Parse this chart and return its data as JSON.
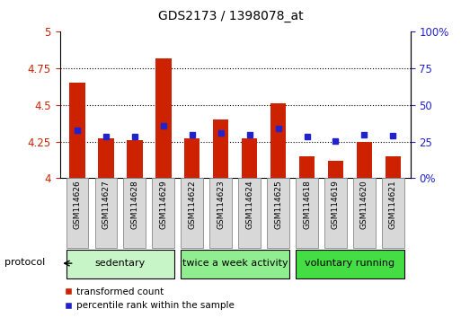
{
  "title": "GDS2173 / 1398078_at",
  "samples": [
    "GSM114626",
    "GSM114627",
    "GSM114628",
    "GSM114629",
    "GSM114622",
    "GSM114623",
    "GSM114624",
    "GSM114625",
    "GSM114618",
    "GSM114619",
    "GSM114620",
    "GSM114621"
  ],
  "red_values": [
    4.65,
    4.27,
    4.26,
    4.82,
    4.27,
    4.4,
    4.27,
    4.51,
    4.15,
    4.12,
    4.25,
    4.15
  ],
  "blue_values": [
    4.325,
    4.285,
    4.285,
    4.355,
    4.295,
    4.31,
    4.295,
    4.34,
    4.285,
    4.255,
    4.295,
    4.29
  ],
  "ylim_left": [
    4.0,
    5.0
  ],
  "ylim_right": [
    0,
    100
  ],
  "yticks_left": [
    4.0,
    4.25,
    4.5,
    4.75,
    5.0
  ],
  "yticks_right": [
    0,
    25,
    50,
    75,
    100
  ],
  "ytick_labels_left": [
    "4",
    "4.25",
    "4.5",
    "4.75",
    "5"
  ],
  "ytick_labels_right": [
    "0%",
    "25",
    "50",
    "75",
    "100%"
  ],
  "groups": [
    {
      "label": "sedentary",
      "indices": [
        0,
        1,
        2,
        3
      ],
      "color": "#c8f5c8"
    },
    {
      "label": "twice a week activity",
      "indices": [
        4,
        5,
        6,
        7
      ],
      "color": "#90ee90"
    },
    {
      "label": "voluntary running",
      "indices": [
        8,
        9,
        10,
        11
      ],
      "color": "#44dd44"
    }
  ],
  "bar_color": "#cc2200",
  "blue_marker_color": "#2222cc",
  "base_value": 4.0,
  "bar_width": 0.55,
  "protocol_label": "protocol",
  "legend_red": "transformed count",
  "legend_blue": "percentile rank within the sample",
  "tick_color_left": "#cc2200",
  "tick_color_right": "#2222cc",
  "background_color": "#ffffff",
  "xtick_box_color": "#d8d8d8",
  "xtick_box_edge": "#888888"
}
